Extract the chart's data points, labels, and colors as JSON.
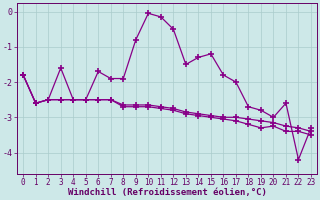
{
  "xlabel": "Windchill (Refroidissement éolien,°C)",
  "x": [
    0,
    1,
    2,
    3,
    4,
    5,
    6,
    7,
    8,
    9,
    10,
    11,
    12,
    13,
    14,
    15,
    16,
    17,
    18,
    19,
    20,
    21,
    22,
    23
  ],
  "series": [
    [
      -1.8,
      -2.6,
      -2.5,
      -1.6,
      -2.5,
      -2.5,
      -1.7,
      -1.9,
      -1.9,
      -0.8,
      -0.05,
      -0.15,
      -0.5,
      -1.5,
      -1.3,
      -1.2,
      -1.8,
      -2.0,
      -2.7,
      -2.8,
      -3.0,
      -2.6,
      -4.2,
      -3.3
    ],
    [
      -1.8,
      -2.6,
      -2.5,
      -2.5,
      -2.5,
      -2.5,
      -2.5,
      -2.5,
      -2.65,
      -2.65,
      -2.65,
      -2.7,
      -2.75,
      -2.85,
      -2.9,
      -2.95,
      -3.0,
      -3.0,
      -3.05,
      -3.1,
      -3.15,
      -3.25,
      -3.3,
      -3.4
    ],
    [
      -1.8,
      -2.6,
      -2.5,
      -2.5,
      -2.5,
      -2.5,
      -2.5,
      -2.5,
      -2.7,
      -2.7,
      -2.7,
      -2.75,
      -2.8,
      -2.9,
      -2.95,
      -3.0,
      -3.05,
      -3.1,
      -3.2,
      -3.3,
      -3.25,
      -3.4,
      -3.4,
      -3.5
    ]
  ],
  "xlim": [
    -0.5,
    23.5
  ],
  "ylim": [
    -4.6,
    0.25
  ],
  "yticks": [
    0,
    -1,
    -2,
    -3,
    -4
  ],
  "xtick_labels": [
    "0",
    "1",
    "2",
    "3",
    "4",
    "5",
    "6",
    "7",
    "8",
    "9",
    "10",
    "11",
    "12",
    "13",
    "14",
    "15",
    "16",
    "17",
    "18",
    "19",
    "20",
    "21",
    "22",
    "23"
  ],
  "bg_color": "#cde8e8",
  "line_color": "#880088",
  "grid_color": "#aacccc",
  "marker": "+",
  "markersize": 4,
  "markeredgewidth": 1.2,
  "linewidth": 0.9,
  "tick_fontsize": 5.5,
  "xlabel_fontsize": 6.5
}
